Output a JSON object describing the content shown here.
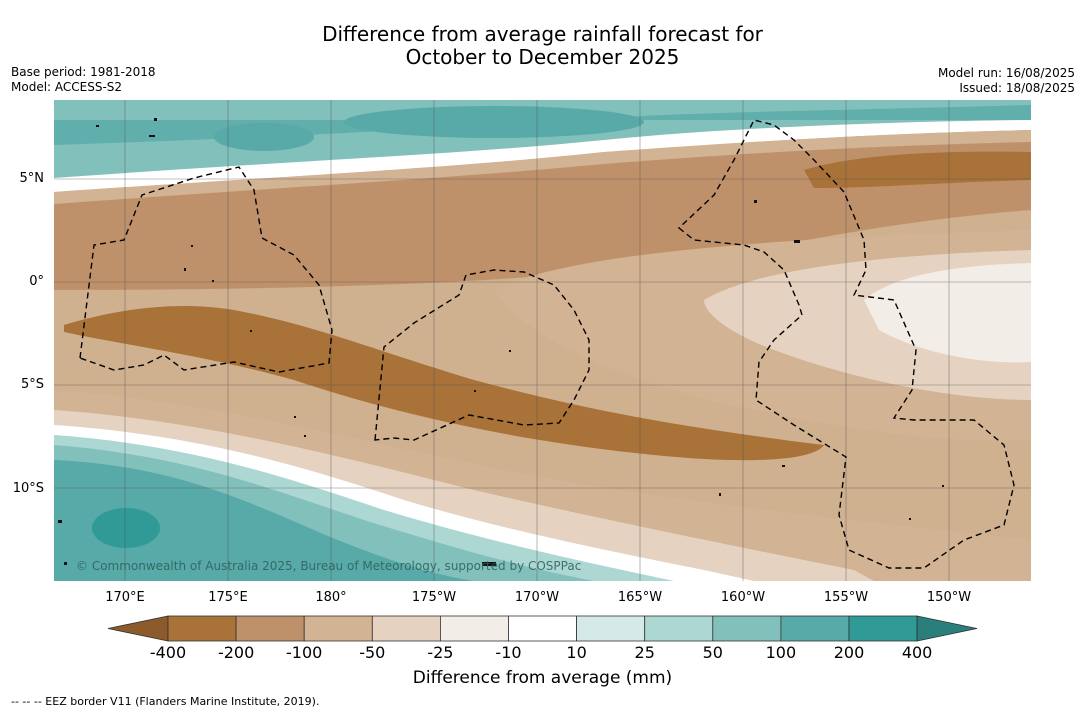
{
  "title": {
    "line1": "Difference from average rainfall forecast for",
    "line2": "October to December 2025"
  },
  "meta": {
    "base_period": "Base period: 1981-2018",
    "model": "Model: ACCESS-S2",
    "model_run": "Model run: 16/08/2025",
    "issued": "Issued: 18/08/2025"
  },
  "map": {
    "copyright": "© Commonwealth of Australia 2025, Bureau of Meteorology, supported by COSPPac",
    "lon_labels": [
      "170°E",
      "175°E",
      "180°",
      "175°W",
      "170°W",
      "165°W",
      "160°W",
      "155°W",
      "150°W"
    ],
    "lat_labels": [
      "5°N",
      "0°",
      "5°S",
      "10°S"
    ]
  },
  "colorbar": {
    "title": "Difference from average (mm)",
    "ticks": [
      "-400",
      "-200",
      "-100",
      "-50",
      "-25",
      "-10",
      "10",
      "25",
      "50",
      "100",
      "200",
      "400"
    ],
    "colors": [
      "#8c5a2b",
      "#a87238",
      "#bf916a",
      "#d2b394",
      "#e5d2c1",
      "#f3ede7",
      "#ffffff",
      "#d5e9e6",
      "#acd7d3",
      "#82c0bc",
      "#58aaa8",
      "#2f9a96",
      "#2a7e7c"
    ]
  },
  "footnote": "--  --  -- EEZ border V11 (Flanders Marine Institute, 2019)."
}
